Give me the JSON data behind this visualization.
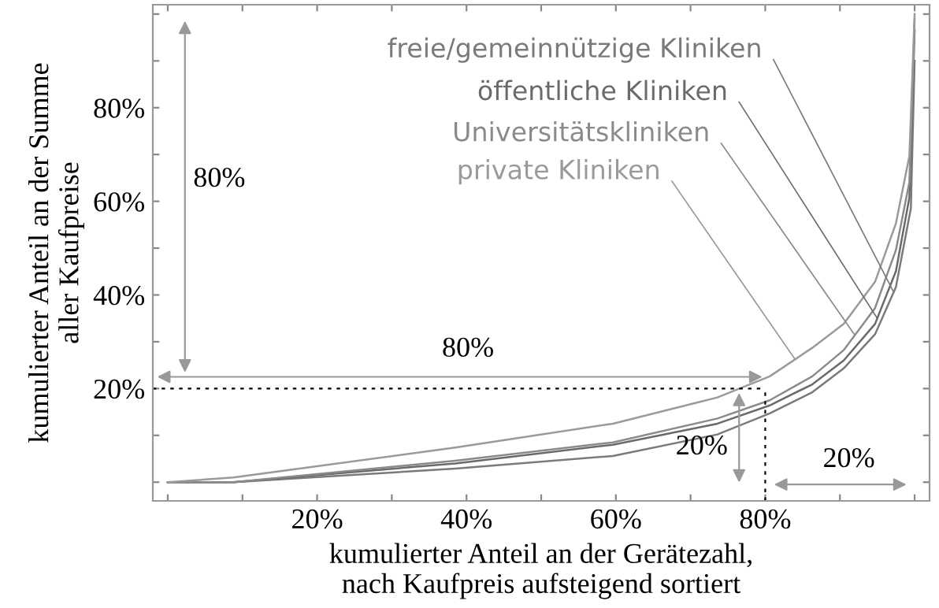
{
  "chart_data": {
    "type": "line",
    "xlabel": "kumulierter Anteil an der Gerätezahl,\nnach Kaufpreis aufsteigend sortiert",
    "ylabel": "kumulierter Anteil an der Summe\naller Kaufpreise",
    "series": [
      {
        "name": "freie/gemeinnützige Kliniken",
        "color": "#7a7a7a",
        "x": [
          0,
          8.8,
          38.5,
          59.6,
          73.6,
          80.6,
          86.3,
          90.5,
          94.7,
          97.5,
          99.5,
          100
        ],
        "values": [
          0,
          0,
          2.9,
          5.6,
          10.2,
          14.7,
          19.2,
          24.3,
          31.6,
          41.7,
          58.5,
          90
        ]
      },
      {
        "name": "öffentliche Kliniken",
        "color": "#6a6a6a",
        "x": [
          0,
          8.8,
          38.5,
          59.6,
          73.6,
          80.6,
          86.3,
          90.5,
          94.7,
          97.5,
          99.3,
          100
        ],
        "values": [
          0,
          0,
          4.0,
          8.0,
          12.5,
          16.4,
          20.9,
          26.0,
          33.8,
          45.1,
          60.8,
          96.6
        ]
      },
      {
        "name": "Universitätskliniken",
        "color": "#8a8a8a",
        "x": [
          0,
          8.8,
          38.5,
          59.6,
          73.6,
          80.6,
          86.3,
          90.5,
          94.7,
          97.5,
          99.3,
          100
        ],
        "values": [
          0,
          0,
          4.6,
          8.5,
          13.6,
          17.5,
          22.6,
          28.2,
          37.2,
          49.6,
          64.1,
          98.9
        ]
      },
      {
        "name": "private Kliniken",
        "color": "#9a9a9a",
        "x": [
          0,
          8.8,
          38.5,
          59.6,
          73.6,
          80.6,
          86.3,
          90.5,
          94.7,
          97.5,
          99.3,
          100
        ],
        "values": [
          0,
          1.0,
          7.4,
          12.5,
          18.1,
          22.6,
          28.7,
          33.8,
          42.8,
          55.3,
          69.7,
          100
        ]
      }
    ],
    "xlim": [
      -2,
      102
    ],
    "ylim": [
      -4,
      102
    ],
    "xticks": [
      {
        "value": 0,
        "label": null
      },
      {
        "value": 10,
        "label": null
      },
      {
        "value": 20,
        "label": "20%"
      },
      {
        "value": 30,
        "label": null
      },
      {
        "value": 40,
        "label": "40%"
      },
      {
        "value": 50,
        "label": null
      },
      {
        "value": 60,
        "label": "60%"
      },
      {
        "value": 70,
        "label": null
      },
      {
        "value": 80,
        "label": "80%"
      },
      {
        "value": 90,
        "label": null
      },
      {
        "value": 100,
        "label": null
      }
    ],
    "yticks": [
      {
        "value": 0,
        "label": null
      },
      {
        "value": 10,
        "label": null
      },
      {
        "value": 20,
        "label": "20%"
      },
      {
        "value": 30,
        "label": null
      },
      {
        "value": 40,
        "label": "40%"
      },
      {
        "value": 50,
        "label": null
      },
      {
        "value": 60,
        "label": "60%"
      },
      {
        "value": 70,
        "label": null
      },
      {
        "value": 80,
        "label": "80%"
      },
      {
        "value": 90,
        "label": null
      },
      {
        "value": 100,
        "label": null
      }
    ],
    "annotations": [
      "80%",
      "80%",
      "20%",
      "20%"
    ],
    "ref_lines": [
      {
        "axis": "y",
        "value": 20,
        "color": "#000000",
        "line_style": "dotted"
      },
      {
        "axis": "x",
        "value": 80,
        "color": "#000000",
        "line_style": "dotted"
      }
    ],
    "legend": "top",
    "marker": "none",
    "line_style": "solid"
  }
}
